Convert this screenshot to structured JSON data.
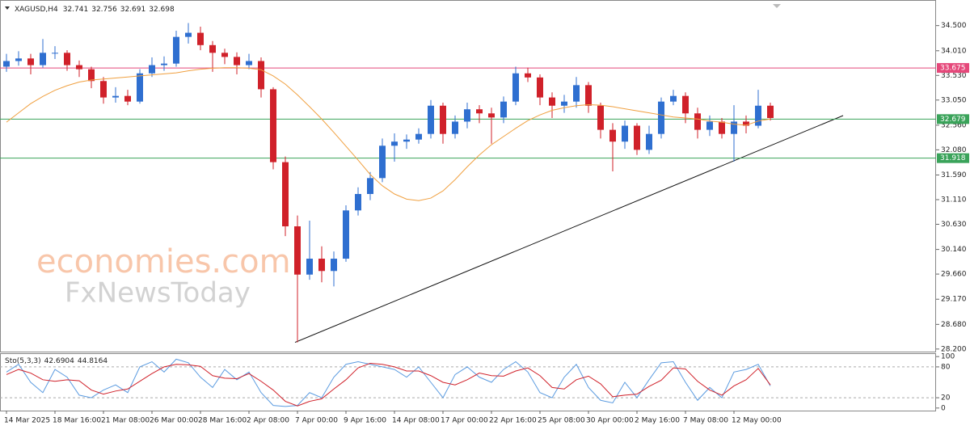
{
  "chart_data": {
    "type": "candlestick",
    "title": "XAGUSD,H4",
    "quote": [
      32.741,
      32.756,
      32.691,
      32.698
    ],
    "watermark": [
      "economies.com",
      "FxNewsToday"
    ],
    "categories": [
      "14 Mar 2025",
      null,
      null,
      null,
      "18 Mar 16:00",
      null,
      null,
      null,
      "21 Mar 08:00",
      null,
      null,
      null,
      "26 Mar 00:00",
      null,
      null,
      null,
      "28 Mar 16:00",
      null,
      null,
      null,
      "2 Apr 08:00",
      null,
      null,
      null,
      "7 Apr 00:00",
      null,
      null,
      null,
      "9 Apr 16:00",
      null,
      null,
      null,
      "14 Apr 08:00",
      null,
      null,
      null,
      "17 Apr 00:00",
      null,
      null,
      null,
      "22 Apr 16:00",
      null,
      null,
      null,
      "25 Apr 08:00",
      null,
      null,
      null,
      "30 Apr 00:00",
      null,
      null,
      null,
      "2 May 16:00",
      null,
      null,
      null,
      "7 May 08:00",
      null,
      null,
      null,
      "12 May 00:00",
      null,
      null,
      null
    ],
    "open": [
      33.7,
      33.81,
      33.86,
      33.73,
      33.97,
      33.97,
      33.73,
      33.65,
      33.42,
      33.1,
      33.13,
      33.02,
      33.57,
      33.73,
      33.76,
      34.28,
      34.36,
      34.12,
      33.97,
      33.89,
      33.73,
      33.81,
      33.26,
      31.84,
      30.59,
      29.65,
      29.96,
      29.72,
      29.96,
      30.9,
      31.22,
      31.53,
      32.16,
      32.24,
      32.28,
      32.39,
      32.94,
      32.39,
      32.63,
      32.87,
      32.79,
      32.71,
      33.02,
      33.57,
      33.49,
      33.1,
      32.94,
      33.02,
      33.34,
      32.94,
      32.47,
      32.24,
      32.55,
      32.08,
      32.39,
      33.02,
      33.13,
      32.79,
      32.47,
      32.63,
      32.39,
      32.63,
      32.55,
      32.94
    ],
    "high": [
      33.95,
      34.0,
      33.95,
      34.24,
      34.1,
      34.02,
      33.82,
      33.7,
      33.5,
      33.3,
      33.25,
      33.65,
      33.88,
      33.9,
      34.4,
      34.55,
      34.48,
      34.2,
      34.05,
      33.98,
      33.95,
      33.88,
      33.3,
      31.95,
      30.8,
      30.7,
      30.2,
      30.1,
      31.0,
      31.35,
      31.65,
      32.3,
      32.4,
      32.38,
      32.5,
      33.05,
      33.0,
      32.75,
      33.0,
      32.95,
      32.9,
      33.12,
      33.7,
      33.68,
      33.55,
      33.2,
      33.15,
      33.5,
      33.4,
      33.0,
      32.6,
      32.65,
      32.6,
      32.55,
      33.1,
      33.25,
      33.2,
      32.9,
      32.75,
      32.7,
      32.95,
      32.75,
      33.25,
      33.0
    ],
    "low": [
      33.6,
      33.72,
      33.55,
      33.68,
      33.85,
      33.62,
      33.5,
      33.28,
      32.98,
      33.0,
      32.95,
      32.98,
      33.5,
      33.62,
      33.7,
      34.15,
      34.02,
      33.6,
      33.75,
      33.55,
      33.65,
      33.1,
      31.7,
      30.4,
      28.33,
      29.55,
      29.5,
      29.42,
      29.9,
      30.8,
      31.1,
      31.45,
      31.85,
      32.1,
      32.2,
      32.3,
      32.2,
      32.3,
      32.5,
      32.6,
      32.2,
      32.6,
      32.95,
      33.4,
      32.95,
      32.7,
      32.8,
      32.9,
      32.8,
      32.3,
      31.66,
      32.1,
      31.98,
      32.0,
      32.3,
      32.95,
      32.6,
      32.3,
      32.35,
      32.3,
      31.85,
      32.4,
      32.5,
      32.65
    ],
    "close": [
      33.81,
      33.86,
      33.73,
      33.97,
      33.97,
      33.73,
      33.65,
      33.42,
      33.1,
      33.13,
      33.02,
      33.57,
      33.73,
      33.76,
      34.28,
      34.36,
      34.12,
      33.97,
      33.89,
      33.73,
      33.81,
      33.26,
      31.84,
      30.59,
      29.65,
      29.96,
      29.72,
      29.96,
      30.9,
      31.22,
      31.53,
      32.16,
      32.24,
      32.28,
      32.39,
      32.94,
      32.39,
      32.63,
      32.87,
      32.79,
      32.71,
      33.02,
      33.57,
      33.49,
      33.1,
      32.94,
      33.02,
      33.34,
      32.94,
      32.47,
      32.24,
      32.55,
      32.08,
      32.39,
      33.02,
      33.13,
      32.79,
      32.47,
      32.63,
      32.39,
      32.63,
      32.55,
      32.94,
      32.7
    ],
    "up_color": "#2f6fd0",
    "down_color": "#d0212a",
    "ma": {
      "color": "#f0a040",
      "values": [
        32.62,
        32.8,
        32.98,
        33.12,
        33.24,
        33.33,
        33.4,
        33.44,
        33.46,
        33.48,
        33.5,
        33.52,
        33.54,
        33.56,
        33.58,
        33.62,
        33.65,
        33.67,
        33.68,
        33.68,
        33.67,
        33.64,
        33.52,
        33.36,
        33.15,
        32.92,
        32.68,
        32.42,
        32.15,
        31.88,
        31.6,
        31.38,
        31.22,
        31.12,
        31.09,
        31.14,
        31.28,
        31.5,
        31.75,
        31.98,
        32.18,
        32.34,
        32.5,
        32.65,
        32.76,
        32.85,
        32.9,
        32.94,
        32.96,
        32.95,
        32.92,
        32.88,
        32.84,
        32.8,
        32.76,
        32.72,
        32.7,
        32.68,
        32.64,
        32.62,
        32.58,
        32.56,
        32.64,
        32.68
      ]
    },
    "levels": [
      {
        "value": 33.675,
        "color": "#e5487a"
      },
      {
        "value": 32.679,
        "color": "#3aa35a"
      },
      {
        "value": 31.918,
        "color": "#3aa35a"
      }
    ],
    "ylim": [
      28.15,
      34.92
    ],
    "yticks": [
      {
        "value": 34.5,
        "label": "34.500"
      },
      {
        "value": 34.01,
        "label": "34.010"
      },
      {
        "value": 33.53,
        "label": "33.530"
      },
      {
        "value": 33.05,
        "label": "33.050"
      },
      {
        "value": 32.56,
        "label": "32.560"
      },
      {
        "value": 32.08,
        "label": "32.080"
      },
      {
        "value": 31.59,
        "label": "31.590"
      },
      {
        "value": 31.11,
        "label": "31.110"
      },
      {
        "value": 30.63,
        "label": "30.630"
      },
      {
        "value": 30.14,
        "label": "30.140"
      },
      {
        "value": 29.66,
        "label": "29.660"
      },
      {
        "value": 29.17,
        "label": "29.170"
      },
      {
        "value": 28.68,
        "label": "28.680"
      },
      {
        "value": 28.2,
        "label": "28.200"
      }
    ],
    "oscillator": {
      "label": "Sto(5,3,3)",
      "readings": [
        42.6904,
        44.8164
      ],
      "ylim": [
        -5,
        105
      ],
      "yticks": [
        100,
        80,
        20,
        0
      ],
      "levels": [
        80,
        20
      ],
      "series": [
        {
          "color": "#5b9be0",
          "values": [
            70,
            85,
            50,
            30,
            75,
            60,
            25,
            20,
            35,
            45,
            30,
            80,
            90,
            70,
            95,
            88,
            60,
            40,
            75,
            55,
            70,
            30,
            5,
            3,
            5,
            30,
            20,
            60,
            85,
            90,
            85,
            80,
            75,
            60,
            80,
            50,
            20,
            65,
            80,
            60,
            50,
            75,
            90,
            70,
            30,
            20,
            60,
            85,
            40,
            15,
            10,
            50,
            20,
            55,
            88,
            90,
            50,
            15,
            40,
            20,
            70,
            75,
            85,
            43
          ]
        },
        {
          "color": "#d0212a",
          "values": [
            65,
            75,
            68,
            55,
            52,
            55,
            53,
            35,
            27,
            33,
            37,
            52,
            67,
            80,
            85,
            84,
            81,
            63,
            58,
            57,
            67,
            52,
            35,
            13,
            4,
            13,
            18,
            37,
            55,
            78,
            87,
            85,
            80,
            72,
            72,
            63,
            50,
            45,
            55,
            68,
            63,
            62,
            72,
            78,
            63,
            40,
            37,
            55,
            62,
            47,
            22,
            25,
            27,
            42,
            54,
            78,
            76,
            52,
            35,
            25,
            43,
            55,
            77,
            45
          ]
        }
      ]
    }
  }
}
